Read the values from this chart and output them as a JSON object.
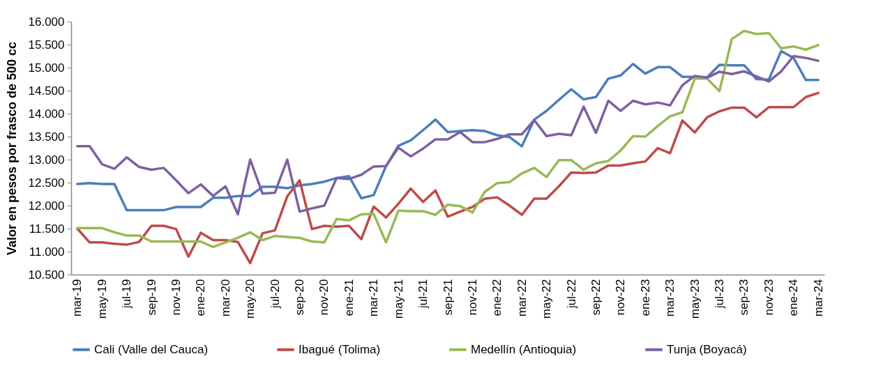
{
  "chart_data": {
    "type": "line",
    "ylabel": "Valor en pesos por frasco de 500 cc",
    "categories": [
      "mar-19",
      null,
      "may-19",
      null,
      "jul-19",
      null,
      "sep-19",
      null,
      "nov-19",
      null,
      "ene-20",
      null,
      "mar-20",
      null,
      "may-20",
      null,
      "jul-20",
      null,
      "sep-20",
      null,
      "nov-20",
      null,
      "ene-21",
      null,
      "mar-21",
      null,
      "may-21",
      null,
      "jul-21",
      null,
      "sep-21",
      null,
      "nov-21",
      null,
      "ene-22",
      null,
      "mar-22",
      null,
      "may-22",
      null,
      "jul-22",
      null,
      "sep-22",
      null,
      "nov-22",
      null,
      "ene-23",
      null,
      "mar-23",
      null,
      "may-23",
      null,
      "jul-23",
      null,
      "sep-23",
      null,
      "nov-23",
      null,
      "ene-24",
      null,
      "mar-24"
    ],
    "series": [
      {
        "name": "Cali (Valle del Cauca)",
        "color": "#4a7ebb",
        "values": [
          12470,
          12490,
          12470,
          12470,
          11900,
          11900,
          11900,
          11900,
          11970,
          11970,
          11970,
          12170,
          12170,
          12210,
          12210,
          12410,
          12410,
          12380,
          12440,
          12470,
          12520,
          12600,
          12640,
          12160,
          12230,
          12860,
          13300,
          13420,
          13640,
          13870,
          13600,
          13620,
          13640,
          13620,
          13530,
          13490,
          13290,
          13870,
          14060,
          14300,
          14530,
          14310,
          14360,
          14760,
          14830,
          15080,
          14870,
          15010,
          15010,
          14800,
          14800,
          14790,
          15060,
          15050,
          15050,
          14750,
          14740,
          15360,
          15210,
          14730,
          14730
        ]
      },
      {
        "name": "Ibagué (Tolima)",
        "color": "#be4b48",
        "values": [
          11500,
          11200,
          11200,
          11170,
          11150,
          11210,
          11560,
          11560,
          11490,
          10890,
          11410,
          11250,
          11250,
          11210,
          10750,
          11400,
          11460,
          12200,
          12550,
          11490,
          11560,
          11540,
          11560,
          11270,
          11980,
          11740,
          12040,
          12370,
          12080,
          12330,
          11760,
          11870,
          11970,
          12150,
          12180,
          12000,
          11800,
          12150,
          12150,
          12420,
          12720,
          12710,
          12720,
          12870,
          12870,
          12920,
          12960,
          13250,
          13140,
          13850,
          13590,
          13920,
          14050,
          14130,
          14130,
          13920,
          14140,
          14140,
          14140,
          14360,
          14450
        ]
      },
      {
        "name": "Medellín (Antioquia)",
        "color": "#98b954",
        "values": [
          11510,
          11510,
          11510,
          11420,
          11350,
          11350,
          11220,
          11220,
          11220,
          11220,
          11220,
          11100,
          11200,
          11300,
          11420,
          11250,
          11340,
          11320,
          11300,
          11220,
          11200,
          11710,
          11680,
          11810,
          11820,
          11200,
          11890,
          11880,
          11880,
          11800,
          12020,
          11990,
          11850,
          12300,
          12490,
          12510,
          12700,
          12820,
          12620,
          12990,
          12990,
          12780,
          12920,
          12970,
          13200,
          13510,
          13500,
          13730,
          13940,
          14030,
          14760,
          14760,
          14490,
          15620,
          15800,
          15730,
          15750,
          15420,
          15460,
          15390,
          15490
        ]
      },
      {
        "name": "Tunja (Boyacá)",
        "color": "#7d60a0",
        "values": [
          13290,
          13290,
          12900,
          12800,
          13050,
          12840,
          12780,
          12820,
          12550,
          12270,
          12460,
          12210,
          12420,
          11810,
          13000,
          12260,
          12280,
          13000,
          11870,
          11940,
          12000,
          12600,
          12580,
          12670,
          12850,
          12860,
          13260,
          13070,
          13240,
          13440,
          13440,
          13600,
          13380,
          13380,
          13450,
          13550,
          13550,
          13860,
          13510,
          13560,
          13530,
          14150,
          13580,
          14280,
          14060,
          14280,
          14200,
          14240,
          14180,
          14620,
          14820,
          14780,
          14910,
          14860,
          14920,
          14810,
          14700,
          14920,
          15250,
          15210,
          15150
        ]
      }
    ],
    "ylim": [
      10500,
      16000
    ],
    "yticks": [
      {
        "value": 10500,
        "label": "10.500"
      },
      {
        "value": 11000,
        "label": "11.000"
      },
      {
        "value": 11500,
        "label": "11.500"
      },
      {
        "value": 12000,
        "label": "12.000"
      },
      {
        "value": 12500,
        "label": "12.500"
      },
      {
        "value": 13000,
        "label": "13.000"
      },
      {
        "value": 13500,
        "label": "13.500"
      },
      {
        "value": 14000,
        "label": "14.000"
      },
      {
        "value": 14500,
        "label": "14.500"
      },
      {
        "value": 15000,
        "label": "15.000"
      },
      {
        "value": 15500,
        "label": "15.500"
      },
      {
        "value": 16000,
        "label": "16.000"
      }
    ],
    "legend": "bottom",
    "grid": false,
    "marker": "none",
    "line_style": "solid"
  }
}
